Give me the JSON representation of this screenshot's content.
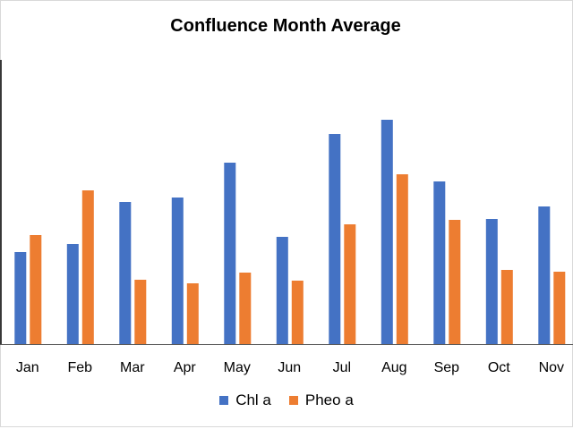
{
  "chart_data": {
    "type": "bar",
    "title": "Confluence Month Average",
    "xlabel": "",
    "ylabel": "",
    "categories": [
      "Jan",
      "Feb",
      "Mar",
      "Apr",
      "May",
      "Jun",
      "Jul",
      "Aug",
      "Sep",
      "Oct",
      "Nov"
    ],
    "series": [
      {
        "name": "Chl a",
        "color": "#4472C4",
        "values": [
          103,
          112,
          159,
          164,
          203,
          120,
          235,
          251,
          182,
          140,
          154
        ]
      },
      {
        "name": "Pheo a",
        "color": "#ED7D31",
        "values": [
          122,
          172,
          72,
          68,
          80,
          71,
          134,
          190,
          139,
          83,
          81
        ]
      }
    ],
    "ylim": [
      0,
      318
    ],
    "grid": false,
    "legend": "bottom"
  }
}
